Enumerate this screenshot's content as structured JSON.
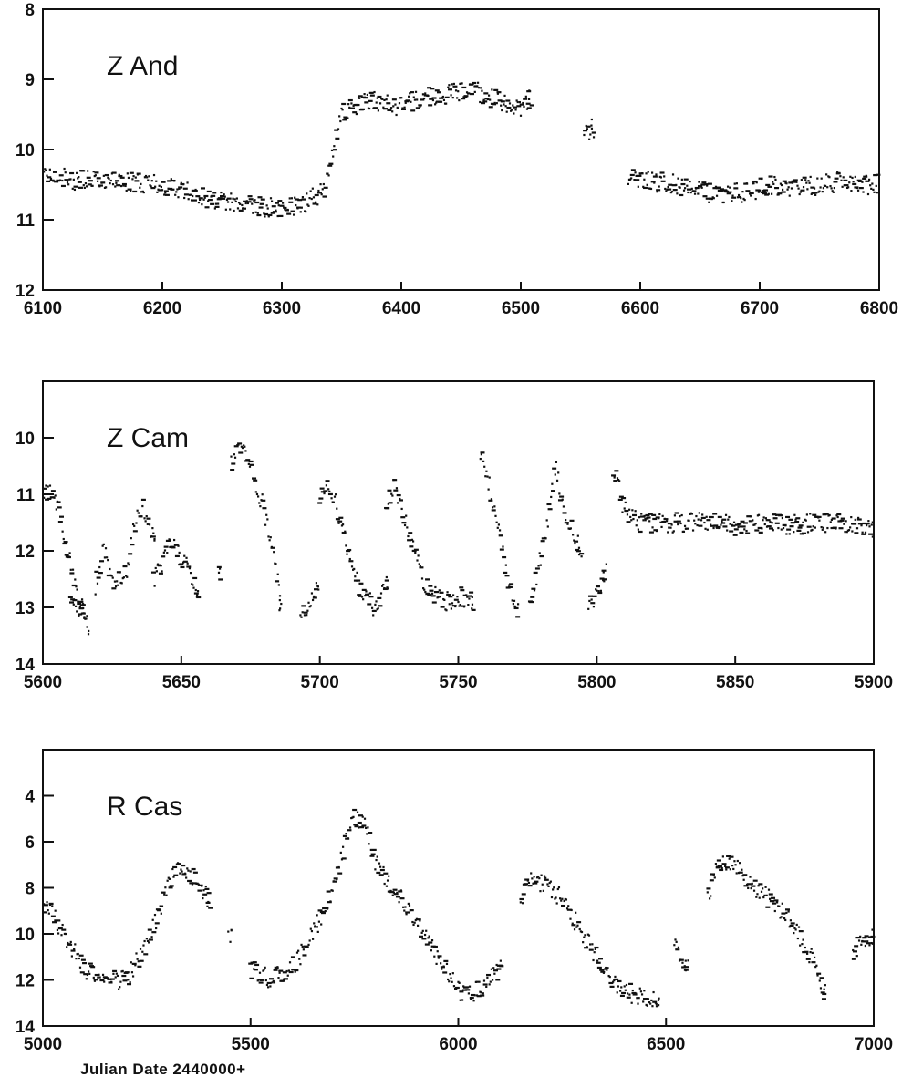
{
  "figure": {
    "xlabel": "Julian Date  2440000+"
  },
  "chart_data": [
    {
      "type": "scatter",
      "title": "Z And",
      "xlim": [
        6100,
        6800
      ],
      "ylim": [
        8,
        12
      ],
      "y_inverted": true,
      "xticks": [
        6100,
        6200,
        6300,
        6400,
        6500,
        6600,
        6700,
        6800
      ],
      "yticks": [
        8,
        9,
        10,
        11,
        12
      ],
      "grid": false,
      "segments": [
        {
          "x": [
            6100,
            6118,
            6125,
            6145,
            6170,
            6200,
            6215,
            6240,
            6260,
            6280,
            6300,
            6320,
            6335,
            6342,
            6350,
            6360,
            6375,
            6395,
            6420,
            6440,
            6460,
            6480,
            6500,
            6508
          ],
          "y": [
            10.3,
            10.4,
            10.45,
            10.4,
            10.45,
            10.5,
            10.55,
            10.7,
            10.75,
            10.8,
            10.85,
            10.75,
            10.6,
            10.1,
            9.5,
            9.4,
            9.3,
            9.4,
            9.25,
            9.2,
            9.15,
            9.3,
            9.45,
            9.3
          ]
        },
        {
          "x": [
            6553,
            6560
          ],
          "y": [
            9.8,
            9.7
          ]
        },
        {
          "x": [
            6590,
            6610,
            6630,
            6650,
            6670,
            6690,
            6710,
            6730,
            6750,
            6770,
            6790,
            6800
          ],
          "y": [
            10.4,
            10.45,
            10.5,
            10.6,
            10.65,
            10.6,
            10.5,
            10.55,
            10.5,
            10.45,
            10.5,
            10.5
          ]
        }
      ]
    },
    {
      "type": "scatter",
      "title": "Z Cam",
      "xlim": [
        5600,
        5900
      ],
      "ylim": [
        9,
        14
      ],
      "y_inverted": true,
      "xticks": [
        5600,
        5650,
        5700,
        5750,
        5800,
        5850,
        5900
      ],
      "yticks": [
        10,
        11,
        12,
        13,
        14
      ],
      "grid": false,
      "segments": [
        {
          "x": [
            5600,
            5603,
            5606,
            5609,
            5612,
            5616
          ],
          "y": [
            11.0,
            10.9,
            11.3,
            12.0,
            12.6,
            13.3
          ]
        },
        {
          "x": [
            5610,
            5613,
            5615
          ],
          "y": [
            12.8,
            13.0,
            13.1
          ]
        },
        {
          "x": [
            5619,
            5622,
            5626,
            5630,
            5633,
            5636,
            5640
          ],
          "y": [
            12.6,
            12.0,
            12.6,
            12.4,
            11.6,
            11.2,
            11.8
          ]
        },
        {
          "x": [
            5640,
            5643,
            5646,
            5650,
            5653,
            5656
          ],
          "y": [
            12.5,
            12.2,
            11.8,
            12.1,
            12.4,
            12.8
          ]
        },
        {
          "x": [
            5664
          ],
          "y": [
            12.4
          ]
        },
        {
          "x": [
            5668,
            5671,
            5674,
            5677,
            5680,
            5683,
            5686
          ],
          "y": [
            10.5,
            10.2,
            10.4,
            10.8,
            11.3,
            11.9,
            13.0
          ]
        },
        {
          "x": [
            5693,
            5696,
            5699
          ],
          "y": [
            13.2,
            12.9,
            12.7
          ]
        },
        {
          "x": [
            5700,
            5702,
            5705,
            5708,
            5712,
            5716,
            5720,
            5724
          ],
          "y": [
            11.2,
            10.8,
            11.0,
            11.6,
            12.4,
            12.8,
            13.0,
            12.6
          ]
        },
        {
          "x": [
            5724,
            5727,
            5730,
            5733,
            5737,
            5741,
            5745,
            5750,
            5755
          ],
          "y": [
            11.2,
            10.8,
            11.3,
            11.8,
            12.5,
            12.8,
            12.9,
            12.8,
            12.9
          ]
        },
        {
          "x": [
            5758,
            5762,
            5765,
            5768,
            5771
          ],
          "y": [
            10.3,
            11.0,
            11.8,
            12.5,
            13.0
          ]
        },
        {
          "x": [
            5776,
            5779,
            5782,
            5785,
            5788,
            5791,
            5794
          ],
          "y": [
            12.9,
            12.3,
            11.6,
            10.5,
            11.2,
            11.6,
            12.0
          ]
        },
        {
          "x": [
            5797,
            5800,
            5803
          ],
          "y": [
            13.0,
            12.7,
            12.4
          ]
        },
        {
          "x": [
            5806,
            5810,
            5815,
            5822,
            5830,
            5840,
            5850,
            5860,
            5870,
            5880,
            5890,
            5900
          ],
          "y": [
            10.5,
            11.3,
            11.5,
            11.5,
            11.5,
            11.5,
            11.55,
            11.5,
            11.55,
            11.5,
            11.5,
            11.6
          ]
        }
      ]
    },
    {
      "type": "scatter",
      "title": "R Cas",
      "xlim": [
        5000,
        7000
      ],
      "ylim": [
        2,
        14
      ],
      "y_inverted": true,
      "xticks": [
        5000,
        5500,
        6000,
        6500,
        7000
      ],
      "yticks": [
        4,
        6,
        8,
        10,
        12,
        14
      ],
      "grid": false,
      "segments": [
        {
          "x": [
            5000,
            5050,
            5100,
            5150,
            5200,
            5250,
            5300,
            5320,
            5350,
            5380,
            5400
          ],
          "y": [
            8.5,
            10.0,
            11.5,
            12.0,
            12.0,
            10.5,
            8.0,
            7.2,
            7.3,
            8.0,
            8.5
          ]
        },
        {
          "x": [
            5450
          ],
          "y": [
            10.2
          ]
        },
        {
          "x": [
            5500,
            5550,
            5600,
            5650,
            5700,
            5730,
            5750,
            5780,
            5800,
            5850,
            5900,
            5950,
            6000,
            6050,
            6100
          ],
          "y": [
            11.5,
            12.0,
            11.5,
            10.0,
            8.0,
            6.0,
            4.8,
            5.5,
            6.8,
            8.2,
            9.5,
            11.0,
            12.5,
            12.5,
            11.5
          ]
        },
        {
          "x": [
            6150,
            6170,
            6200,
            6250,
            6300,
            6350,
            6400,
            6450,
            6480
          ],
          "y": [
            9.0,
            7.5,
            7.8,
            8.5,
            10.0,
            11.5,
            12.5,
            12.8,
            13.0
          ]
        },
        {
          "x": [
            6520,
            6550
          ],
          "y": [
            10.5,
            11.5
          ]
        },
        {
          "x": [
            6600,
            6620,
            6650,
            6680,
            6700,
            6750,
            6800,
            6850,
            6880
          ],
          "y": [
            8.5,
            7.3,
            6.8,
            7.2,
            7.8,
            8.5,
            9.5,
            11.0,
            12.5
          ]
        },
        {
          "x": [
            6950,
            6970,
            7000
          ],
          "y": [
            11.0,
            10.3,
            10.0
          ]
        }
      ]
    }
  ]
}
